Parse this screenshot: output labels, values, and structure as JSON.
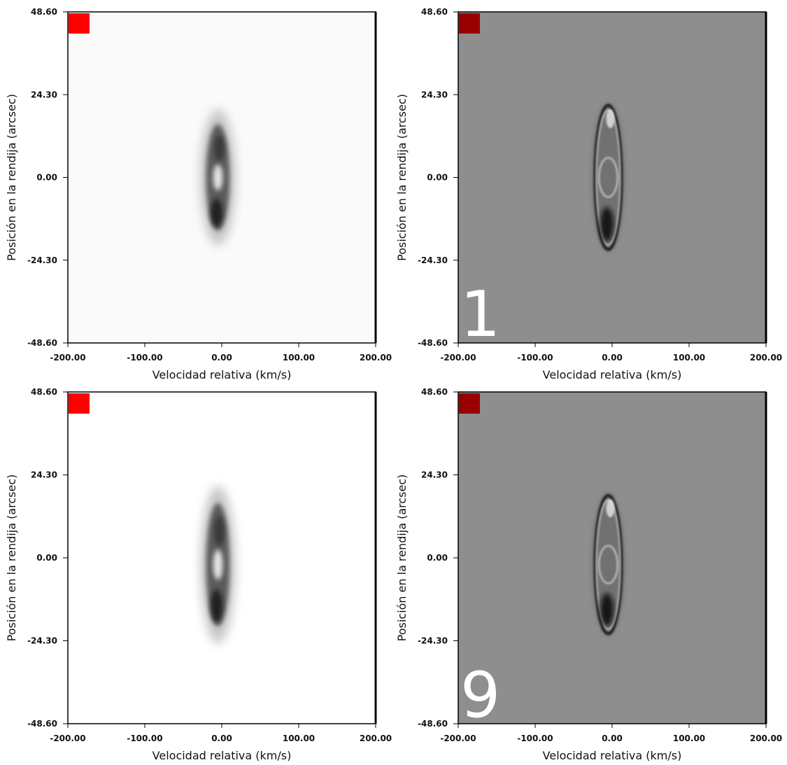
{
  "chart_data": [
    {
      "type": "heatmap",
      "title": "",
      "corner_label": "",
      "xlabel": "Velocidad relativa (km/s)",
      "ylabel": "Posición en la rendija (arcsec)",
      "xlim": [
        -200,
        200
      ],
      "ylim": [
        -48.6,
        48.6
      ],
      "xticks": [
        "-200.00",
        "-100.00",
        "0.00",
        "100.00",
        "200.00"
      ],
      "yticks": [
        "48.60",
        "24.30",
        "0.00",
        "-24.30",
        "-48.60"
      ],
      "background": "#fafafa",
      "marker_color": "#ff0000",
      "style": "intensity",
      "feature": {
        "center_x": -5,
        "center_y": 0,
        "half_width_kms": 22,
        "half_height_arcsec": 19,
        "tilt": "vertical"
      }
    },
    {
      "type": "heatmap",
      "title": "",
      "corner_label": "1",
      "xlabel": "Velocidad relativa (km/s)",
      "ylabel": "Posición en la rendija (arcsec)",
      "xlim": [
        -200,
        200
      ],
      "ylim": [
        -48.6,
        48.6
      ],
      "xticks": [
        "-200.00",
        "-100.00",
        "0.00",
        "100.00",
        "200.00"
      ],
      "yticks": [
        "48.60",
        "24.30",
        "0.00",
        "-24.30",
        "-48.60"
      ],
      "background": "#8e8e8e",
      "marker_color": "#990000",
      "style": "residual",
      "feature": {
        "center_x": -5,
        "center_y": 0,
        "half_width_kms": 22,
        "half_height_arcsec": 23,
        "tilt": "vertical"
      }
    },
    {
      "type": "heatmap",
      "title": "",
      "corner_label": "",
      "xlabel": "Velocidad relativa (km/s)",
      "ylabel": "Posición en la rendija (arcsec)",
      "xlim": [
        -200,
        200
      ],
      "ylim": [
        -48.6,
        48.6
      ],
      "xticks": [
        "-200.00",
        "-100.00",
        "0.00",
        "100.00",
        "200.00"
      ],
      "yticks": [
        "48.60",
        "24.30",
        "0.00",
        "-24.30",
        "-48.60"
      ],
      "background": "#ffffff",
      "marker_color": "#ff0000",
      "style": "intensity",
      "feature": {
        "center_x": -5,
        "center_y": -2,
        "half_width_kms": 22,
        "half_height_arcsec": 22,
        "tilt": "vertical"
      }
    },
    {
      "type": "heatmap",
      "title": "",
      "corner_label": "9",
      "xlabel": "Velocidad relativa (km/s)",
      "ylabel": "Posición en la rendija (arcsec)",
      "xlim": [
        -200,
        200
      ],
      "ylim": [
        -48.6,
        48.6
      ],
      "xticks": [
        "-200.00",
        "-100.00",
        "0.00",
        "100.00",
        "200.00"
      ],
      "yticks": [
        "48.60",
        "24.30",
        "0.00",
        "-24.30",
        "-48.60"
      ],
      "background": "#8e8e8e",
      "marker_color": "#990000",
      "style": "residual",
      "feature": {
        "center_x": -5,
        "center_y": -2,
        "half_width_kms": 22,
        "half_height_arcsec": 22,
        "tilt": "vertical"
      }
    }
  ]
}
